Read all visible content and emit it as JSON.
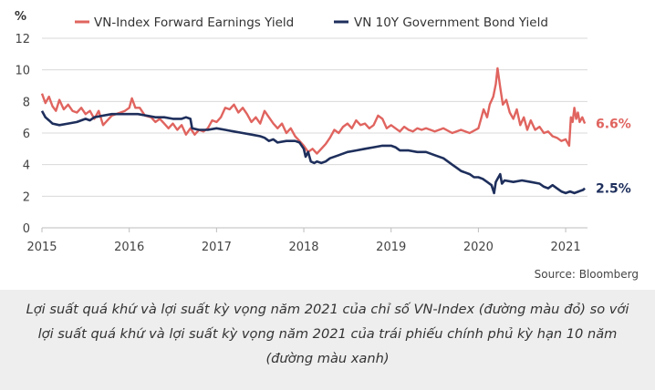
{
  "caption": "Lợi suất quá khứ và lợi suất kỳ vọng năm 2021 của chỉ số VN-Index (đường màu đỏ) so với lợi suất quá khứ và lợi suất kỳ vọng năm 2021 của trái phiếu chính phủ kỳ hạn 10 năm (đường màu xanh)",
  "chart_data": {
    "type": "line",
    "ylabel": "%",
    "ylim": [
      0,
      12
    ],
    "yticks": [
      0,
      2,
      4,
      6,
      8,
      10,
      12
    ],
    "xlim": [
      2015,
      2021.25
    ],
    "xticks": [
      2015,
      2016,
      2017,
      2018,
      2019,
      2020,
      2021
    ],
    "grid": true,
    "legend_position": "top",
    "source": "Source: Bloomberg",
    "colors": {
      "vnindex": "#e0645f",
      "bond": "#1e2f5c"
    },
    "series": [
      {
        "name": "VN-Index Forward Earnings Yield",
        "end_label": "6.6%",
        "points": [
          [
            2015.0,
            8.5
          ],
          [
            2015.04,
            7.9
          ],
          [
            2015.08,
            8.3
          ],
          [
            2015.12,
            7.7
          ],
          [
            2015.16,
            7.4
          ],
          [
            2015.2,
            8.1
          ],
          [
            2015.25,
            7.5
          ],
          [
            2015.3,
            7.8
          ],
          [
            2015.35,
            7.4
          ],
          [
            2015.4,
            7.3
          ],
          [
            2015.45,
            7.6
          ],
          [
            2015.5,
            7.2
          ],
          [
            2015.55,
            7.4
          ],
          [
            2015.6,
            6.9
          ],
          [
            2015.65,
            7.4
          ],
          [
            2015.7,
            6.5
          ],
          [
            2015.75,
            6.8
          ],
          [
            2015.8,
            7.1
          ],
          [
            2015.85,
            7.2
          ],
          [
            2015.9,
            7.3
          ],
          [
            2015.95,
            7.4
          ],
          [
            2016.0,
            7.6
          ],
          [
            2016.03,
            8.2
          ],
          [
            2016.07,
            7.6
          ],
          [
            2016.12,
            7.6
          ],
          [
            2016.18,
            7.1
          ],
          [
            2016.25,
            7.0
          ],
          [
            2016.3,
            6.7
          ],
          [
            2016.35,
            6.9
          ],
          [
            2016.4,
            6.6
          ],
          [
            2016.45,
            6.3
          ],
          [
            2016.5,
            6.6
          ],
          [
            2016.55,
            6.2
          ],
          [
            2016.6,
            6.5
          ],
          [
            2016.65,
            5.9
          ],
          [
            2016.7,
            6.3
          ],
          [
            2016.75,
            5.9
          ],
          [
            2016.8,
            6.2
          ],
          [
            2016.85,
            6.1
          ],
          [
            2016.9,
            6.3
          ],
          [
            2016.95,
            6.8
          ],
          [
            2017.0,
            6.7
          ],
          [
            2017.05,
            7.0
          ],
          [
            2017.1,
            7.6
          ],
          [
            2017.15,
            7.5
          ],
          [
            2017.2,
            7.8
          ],
          [
            2017.25,
            7.3
          ],
          [
            2017.3,
            7.6
          ],
          [
            2017.35,
            7.2
          ],
          [
            2017.4,
            6.7
          ],
          [
            2017.45,
            7.0
          ],
          [
            2017.5,
            6.6
          ],
          [
            2017.55,
            7.4
          ],
          [
            2017.6,
            7.0
          ],
          [
            2017.65,
            6.6
          ],
          [
            2017.7,
            6.3
          ],
          [
            2017.75,
            6.6
          ],
          [
            2017.8,
            6.0
          ],
          [
            2017.85,
            6.3
          ],
          [
            2017.9,
            5.8
          ],
          [
            2017.95,
            5.5
          ],
          [
            2018.0,
            5.2
          ],
          [
            2018.05,
            4.8
          ],
          [
            2018.1,
            5.0
          ],
          [
            2018.15,
            4.7
          ],
          [
            2018.2,
            5.0
          ],
          [
            2018.25,
            5.3
          ],
          [
            2018.3,
            5.7
          ],
          [
            2018.35,
            6.2
          ],
          [
            2018.4,
            6.0
          ],
          [
            2018.45,
            6.4
          ],
          [
            2018.5,
            6.6
          ],
          [
            2018.55,
            6.3
          ],
          [
            2018.6,
            6.8
          ],
          [
            2018.65,
            6.5
          ],
          [
            2018.7,
            6.6
          ],
          [
            2018.75,
            6.3
          ],
          [
            2018.8,
            6.5
          ],
          [
            2018.85,
            7.1
          ],
          [
            2018.9,
            6.9
          ],
          [
            2018.95,
            6.3
          ],
          [
            2019.0,
            6.5
          ],
          [
            2019.05,
            6.3
          ],
          [
            2019.1,
            6.1
          ],
          [
            2019.15,
            6.4
          ],
          [
            2019.2,
            6.2
          ],
          [
            2019.25,
            6.1
          ],
          [
            2019.3,
            6.3
          ],
          [
            2019.35,
            6.2
          ],
          [
            2019.4,
            6.3
          ],
          [
            2019.5,
            6.1
          ],
          [
            2019.6,
            6.3
          ],
          [
            2019.7,
            6.0
          ],
          [
            2019.8,
            6.2
          ],
          [
            2019.9,
            6.0
          ],
          [
            2020.0,
            6.3
          ],
          [
            2020.03,
            6.9
          ],
          [
            2020.06,
            7.5
          ],
          [
            2020.1,
            7.0
          ],
          [
            2020.13,
            7.8
          ],
          [
            2020.17,
            8.3
          ],
          [
            2020.2,
            9.1
          ],
          [
            2020.22,
            10.1
          ],
          [
            2020.25,
            8.9
          ],
          [
            2020.28,
            7.8
          ],
          [
            2020.32,
            8.1
          ],
          [
            2020.36,
            7.3
          ],
          [
            2020.4,
            6.9
          ],
          [
            2020.44,
            7.5
          ],
          [
            2020.48,
            6.5
          ],
          [
            2020.52,
            7.0
          ],
          [
            2020.56,
            6.2
          ],
          [
            2020.6,
            6.8
          ],
          [
            2020.65,
            6.2
          ],
          [
            2020.7,
            6.4
          ],
          [
            2020.75,
            6.0
          ],
          [
            2020.8,
            6.1
          ],
          [
            2020.85,
            5.8
          ],
          [
            2020.9,
            5.7
          ],
          [
            2020.95,
            5.5
          ],
          [
            2021.0,
            5.6
          ],
          [
            2021.02,
            5.4
          ],
          [
            2021.04,
            5.2
          ],
          [
            2021.06,
            7.0
          ],
          [
            2021.08,
            6.7
          ],
          [
            2021.1,
            7.6
          ],
          [
            2021.12,
            6.9
          ],
          [
            2021.14,
            7.3
          ],
          [
            2021.16,
            6.7
          ],
          [
            2021.19,
            7.0
          ],
          [
            2021.22,
            6.6
          ]
        ]
      },
      {
        "name": "VN 10Y Government Bond Yield",
        "end_label": "2.5%",
        "points": [
          [
            2015.0,
            7.4
          ],
          [
            2015.04,
            7.0
          ],
          [
            2015.08,
            6.8
          ],
          [
            2015.12,
            6.6
          ],
          [
            2015.2,
            6.5
          ],
          [
            2015.3,
            6.6
          ],
          [
            2015.4,
            6.7
          ],
          [
            2015.5,
            6.9
          ],
          [
            2015.55,
            6.8
          ],
          [
            2015.6,
            7.0
          ],
          [
            2015.7,
            7.1
          ],
          [
            2015.8,
            7.2
          ],
          [
            2015.9,
            7.2
          ],
          [
            2016.0,
            7.2
          ],
          [
            2016.1,
            7.2
          ],
          [
            2016.2,
            7.1
          ],
          [
            2016.3,
            7.0
          ],
          [
            2016.4,
            7.0
          ],
          [
            2016.5,
            6.9
          ],
          [
            2016.6,
            6.9
          ],
          [
            2016.65,
            7.0
          ],
          [
            2016.7,
            6.9
          ],
          [
            2016.72,
            6.3
          ],
          [
            2016.8,
            6.2
          ],
          [
            2016.9,
            6.2
          ],
          [
            2017.0,
            6.3
          ],
          [
            2017.1,
            6.2
          ],
          [
            2017.2,
            6.1
          ],
          [
            2017.3,
            6.0
          ],
          [
            2017.4,
            5.9
          ],
          [
            2017.5,
            5.8
          ],
          [
            2017.55,
            5.7
          ],
          [
            2017.6,
            5.5
          ],
          [
            2017.65,
            5.6
          ],
          [
            2017.7,
            5.4
          ],
          [
            2017.8,
            5.5
          ],
          [
            2017.9,
            5.5
          ],
          [
            2017.95,
            5.4
          ],
          [
            2018.0,
            5.0
          ],
          [
            2018.02,
            4.5
          ],
          [
            2018.05,
            4.8
          ],
          [
            2018.08,
            4.2
          ],
          [
            2018.12,
            4.1
          ],
          [
            2018.15,
            4.2
          ],
          [
            2018.2,
            4.1
          ],
          [
            2018.25,
            4.2
          ],
          [
            2018.3,
            4.4
          ],
          [
            2018.4,
            4.6
          ],
          [
            2018.5,
            4.8
          ],
          [
            2018.6,
            4.9
          ],
          [
            2018.7,
            5.0
          ],
          [
            2018.8,
            5.1
          ],
          [
            2018.9,
            5.2
          ],
          [
            2019.0,
            5.2
          ],
          [
            2019.05,
            5.1
          ],
          [
            2019.1,
            4.9
          ],
          [
            2019.2,
            4.9
          ],
          [
            2019.3,
            4.8
          ],
          [
            2019.4,
            4.8
          ],
          [
            2019.5,
            4.6
          ],
          [
            2019.6,
            4.4
          ],
          [
            2019.65,
            4.2
          ],
          [
            2019.7,
            4.0
          ],
          [
            2019.75,
            3.8
          ],
          [
            2019.8,
            3.6
          ],
          [
            2019.85,
            3.5
          ],
          [
            2019.9,
            3.4
          ],
          [
            2019.95,
            3.2
          ],
          [
            2020.0,
            3.2
          ],
          [
            2020.05,
            3.1
          ],
          [
            2020.1,
            2.9
          ],
          [
            2020.15,
            2.7
          ],
          [
            2020.18,
            2.2
          ],
          [
            2020.2,
            2.9
          ],
          [
            2020.22,
            3.1
          ],
          [
            2020.25,
            3.4
          ],
          [
            2020.27,
            2.8
          ],
          [
            2020.3,
            3.0
          ],
          [
            2020.4,
            2.9
          ],
          [
            2020.5,
            3.0
          ],
          [
            2020.6,
            2.9
          ],
          [
            2020.7,
            2.8
          ],
          [
            2020.75,
            2.6
          ],
          [
            2020.8,
            2.5
          ],
          [
            2020.85,
            2.7
          ],
          [
            2020.9,
            2.5
          ],
          [
            2020.95,
            2.3
          ],
          [
            2021.0,
            2.2
          ],
          [
            2021.05,
            2.3
          ],
          [
            2021.1,
            2.2
          ],
          [
            2021.15,
            2.3
          ],
          [
            2021.2,
            2.4
          ],
          [
            2021.22,
            2.5
          ]
        ]
      }
    ]
  }
}
